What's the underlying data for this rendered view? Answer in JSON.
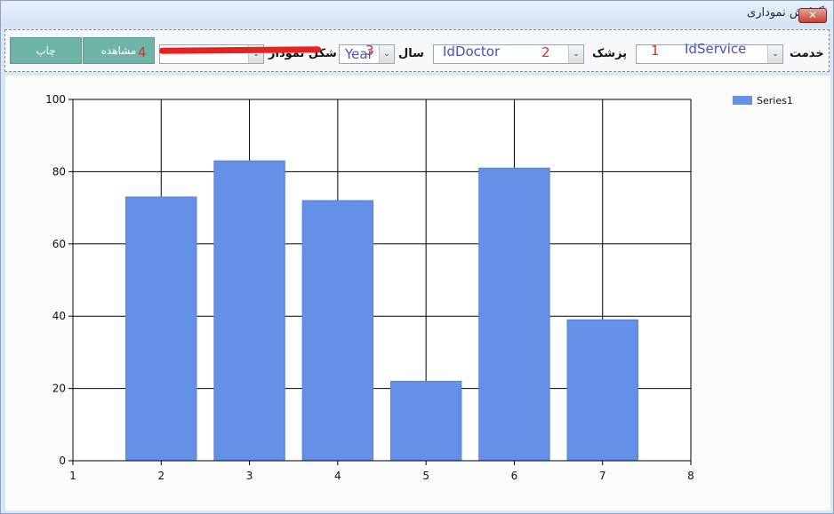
{
  "window": {
    "title": "گزارش نموداری",
    "close_glyph": "✕"
  },
  "toolbar": {
    "print_button": "چاپ",
    "view_button": "مشاهده",
    "chart_shape_label": "شکل نمودار",
    "year_label": "سال",
    "year_value": "Year",
    "doctor_label": "پزشک",
    "doctor_value": "IdDoctor",
    "service_label": "خدمت",
    "service_value": "IdService",
    "arrow_glyph": "⌄"
  },
  "annotations": {
    "n1": "1",
    "n2": "2",
    "n3": "3",
    "n4": "4"
  },
  "colors": {
    "bar": "#6490e8",
    "button": "#6fb5a7",
    "annotation": "#d93030",
    "combo_text": "#4a4fc6"
  },
  "chart_data": {
    "type": "bar",
    "x": [
      2,
      3,
      4,
      5,
      6,
      7
    ],
    "series": [
      {
        "name": "Series1",
        "values": [
          73,
          83,
          72,
          22,
          81,
          39
        ]
      }
    ],
    "xlim": [
      1,
      8
    ],
    "ylim": [
      0,
      100
    ],
    "xticks": [
      1,
      2,
      3,
      4,
      5,
      6,
      7,
      8
    ],
    "yticks": [
      0,
      20,
      40,
      60,
      80,
      100
    ],
    "grid": true,
    "legend": "top-right"
  }
}
